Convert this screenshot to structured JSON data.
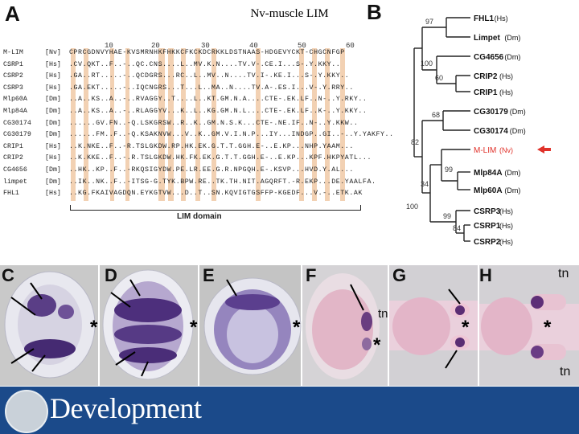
{
  "slide_title": "Nv-muscle LIM",
  "panel_letters": {
    "A": "A",
    "B": "B",
    "C": "C",
    "D": "D",
    "E": "E",
    "F": "F",
    "G": "G",
    "H": "H"
  },
  "alignment": {
    "ruler": [
      "10",
      "20",
      "30",
      "40",
      "50",
      "60"
    ],
    "rows": [
      {
        "name": "M-LIM",
        "species": "[Nv]",
        "seq": "CPRCGDNVYHAE-KVSMRNHKFHKKCFKCKDCRKKLDSTNAAS-HDGEVYCKT-CHGCNFGP"
      },
      {
        "name": "CSRP1",
        "species": "[Hs]",
        "seq": ".CV.QKT..F..-..QC.CNS....L..MV.K.N....TV.V-.CE.I...S-.Y.KKY.."
      },
      {
        "name": "CSRP2",
        "species": "[Hs]",
        "seq": ".GA..RT.....-..QCDGRS...RC..L..MV..N....TV.I-.KE.I...S-.Y.KKY.."
      },
      {
        "name": "CSRP3",
        "species": "[Hs]",
        "seq": ".GA.EKT.....-..IQCNGRS...T...L..MA..N....TV.A-.ES.I...V-.Y.RRY.."
      },
      {
        "name": "Mlp60A",
        "species": "[Dm]",
        "seq": "..A..KS..A..-..RVAGGY..T....L..KT.GM.N.A....CTE-.EK.LF..N-..Y.RKY.."
      },
      {
        "name": "Mlp84A",
        "species": "[Dm]",
        "seq": "..A..KS..A..-..RLAGGYV...K..L..KG.GM.N.L....CTE-.EK.LF..K-..Y.KKY.."
      },
      {
        "name": "CG30174",
        "species": "[Dm]",
        "seq": "......GV.FN..-Q.LSKGRSW..R..K..GM.N.S.K...CTE-.NE.IF..N-..Y.KKW.."
      },
      {
        "name": "CG30179",
        "species": "[Dm]",
        "seq": "......FM..F..-Q.KSAKNVW...V..K..GM.V.I.N.P...IY...INDGP..GI..-..Y.YAKFY.."
      },
      {
        "name": "CRIP1",
        "species": "[Hs]",
        "seq": "..K.NKE..F..-R.TSLGKDW.RP.HK.EK.G.T.T.GGH.E-..E.KP...NHP.YAAM..."
      },
      {
        "name": "CRIP2",
        "species": "[Hs]",
        "seq": "..K.KKE..F..-.R.TSLGKDW.HK.FK.EK.G.T.T.GGH.E-..E.KP...KPF.HKPYATL..."
      },
      {
        "name": "CG4656",
        "species": "[Dm]",
        "seq": "..HK..KP..F..-RKQSIGYDW.PE.LR.EE.G.R.NPGQH.E-.KSVP...HVD.Y.AL..."
      },
      {
        "name": "limpet",
        "species": "[Dm]",
        "seq": "..IK..NK..F..-ITSG-G.TYK.BPW.RE..TK.TH.NIT.AGQRFT.-R.EKP...DE.YAALFA."
      },
      {
        "name": "FHL1",
        "species": "[Hs]",
        "seq": "..KG.FKAIVAGDQN.EYKGTVW...D..T..SN.KQVIGTGSFFP-KGEDF...V.-..ETK.AK"
      }
    ],
    "domain_label": "LIM domain"
  },
  "tree": {
    "taxa": [
      {
        "label": "FHL1",
        "species": "(Hs)"
      },
      {
        "label": "Limpet",
        "species": "(Dm)"
      },
      {
        "label": "CG4656",
        "species": "(Dm)"
      },
      {
        "label": "CRIP2",
        "species": "(Hs)"
      },
      {
        "label": "CRIP1",
        "species": "(Hs)"
      },
      {
        "label": "CG30179",
        "species": "(Dm)"
      },
      {
        "label": "CG30174",
        "species": "(Dm)"
      },
      {
        "label": "M-LIM",
        "species": "(Nv)"
      },
      {
        "label": "Mlp84A",
        "species": "(Dm)"
      },
      {
        "label": "Mlp60A",
        "species": "(Dm)"
      },
      {
        "label": "CSRP3",
        "species": "(Hs)"
      },
      {
        "label": "CSRP1",
        "species": "(Hs)"
      },
      {
        "label": "CSRP2",
        "species": "(Hs)"
      }
    ],
    "bootstrap": [
      "97",
      "100",
      "60",
      "68",
      "82",
      "34",
      "99",
      "100",
      "99",
      "84"
    ],
    "highlight_color": "#e0322a"
  },
  "photo_annotations": {
    "asterisk": "*",
    "tn_label": "tn"
  },
  "footer": {
    "brand": "Development",
    "color": "#1b4a8a"
  }
}
